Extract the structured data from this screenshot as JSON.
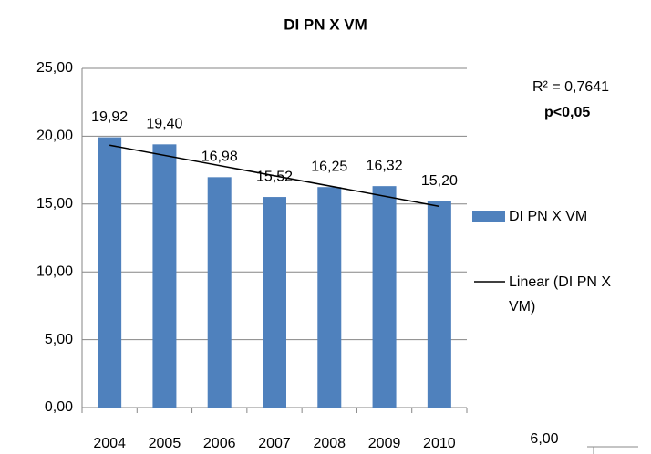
{
  "chart_data": {
    "type": "bar",
    "title": "DI PN X VM",
    "categories": [
      "2004",
      "2005",
      "2006",
      "2007",
      "2008",
      "2009",
      "2010"
    ],
    "series": [
      {
        "name": "DI PN X VM",
        "color": "#4f81bd",
        "values": [
          19.92,
          19.4,
          16.98,
          15.52,
          16.25,
          16.32,
          15.2
        ],
        "value_labels": [
          "19,92",
          "19,40",
          "16,98",
          "15,52",
          "16,25",
          "16,32",
          "15,20"
        ]
      }
    ],
    "trendline": {
      "name": "Linear (DI PN X VM)",
      "color": "#000000",
      "x": [
        "2004",
        "2010"
      ],
      "values": [
        19.34,
        14.83
      ]
    },
    "annotations": [
      "R² = 0,7641",
      "p<0,05"
    ],
    "fragment_label": "6,00",
    "ylim": [
      0,
      25
    ],
    "yticks": [
      {
        "value": 0,
        "label": "0,00"
      },
      {
        "value": 5,
        "label": "5,00"
      },
      {
        "value": 10,
        "label": "10,00"
      },
      {
        "value": 15,
        "label": "15,00"
      },
      {
        "value": 20,
        "label": "20,00"
      },
      {
        "value": 25,
        "label": "25,00"
      }
    ],
    "grid": true
  }
}
